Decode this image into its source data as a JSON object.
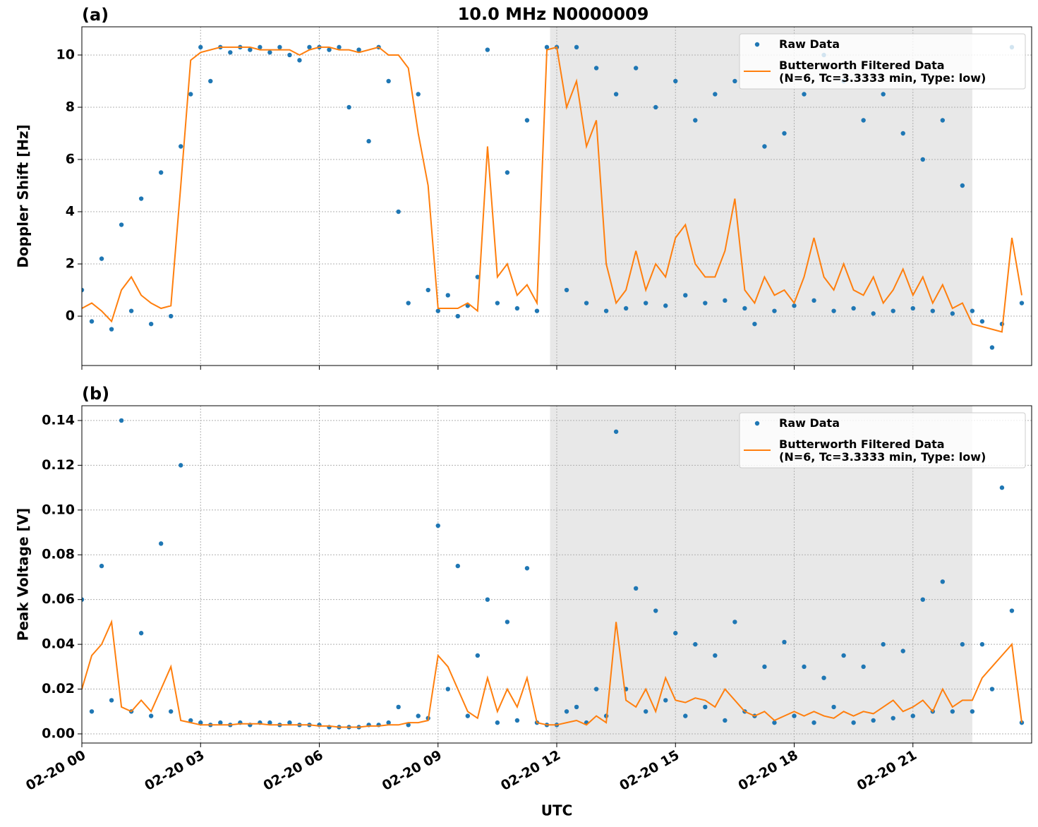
{
  "title": "10.0 MHz N0000009",
  "chart_data": [
    {
      "type": "scatter-line",
      "panel_label": "(a)",
      "ylabel": "Doppler Shift [Hz]",
      "xlim": [
        0,
        24
      ],
      "ylim": [
        -1.89,
        11.08
      ],
      "yticks": [
        0,
        2,
        4,
        6,
        8,
        10
      ],
      "xticks": [
        0,
        3,
        6,
        9,
        12,
        15,
        18,
        21
      ],
      "grid": true,
      "legend": "upper right",
      "shade": [
        11.83,
        22.5
      ],
      "x": [
        0,
        0.25,
        0.5,
        0.75,
        1,
        1.25,
        1.5,
        1.75,
        2,
        2.25,
        2.5,
        2.75,
        3,
        3.25,
        3.5,
        3.75,
        4,
        4.25,
        4.5,
        4.75,
        5,
        5.25,
        5.5,
        5.75,
        6,
        6.25,
        6.5,
        6.75,
        7,
        7.25,
        7.5,
        7.75,
        8,
        8.25,
        8.5,
        8.75,
        9,
        9.25,
        9.5,
        9.75,
        10,
        10.25,
        10.5,
        10.75,
        11,
        11.25,
        11.5,
        11.75,
        12,
        12.25,
        12.5,
        12.75,
        13,
        13.25,
        13.5,
        13.75,
        14,
        14.25,
        14.5,
        14.75,
        15,
        15.25,
        15.5,
        15.75,
        16,
        16.25,
        16.5,
        16.75,
        17,
        17.25,
        17.5,
        17.75,
        18,
        18.25,
        18.5,
        18.75,
        19,
        19.25,
        19.5,
        19.75,
        20,
        20.25,
        20.5,
        20.75,
        21,
        21.25,
        21.5,
        21.75,
        22,
        22.25,
        22.5,
        22.75,
        23,
        23.25,
        23.5,
        23.75
      ],
      "series": [
        {
          "name": "Raw Data",
          "color": "#1f77b4",
          "style": "points",
          "values": [
            1.0,
            -0.2,
            2.2,
            -0.5,
            3.5,
            0.2,
            4.5,
            -0.3,
            5.5,
            0.0,
            6.5,
            8.5,
            10.3,
            9.0,
            10.3,
            10.1,
            10.3,
            10.2,
            10.3,
            10.1,
            10.3,
            10.0,
            9.8,
            10.3,
            10.3,
            10.2,
            10.3,
            8.0,
            10.2,
            6.7,
            10.3,
            9.0,
            4.0,
            0.5,
            8.5,
            1.0,
            0.2,
            0.8,
            0.0,
            0.4,
            1.5,
            10.2,
            0.5,
            5.5,
            0.3,
            7.5,
            0.2,
            10.3,
            10.3,
            1.0,
            10.3,
            0.5,
            9.5,
            0.2,
            8.5,
            0.3,
            9.5,
            0.5,
            8.0,
            0.4,
            9.0,
            0.8,
            7.5,
            0.5,
            8.5,
            0.6,
            9.0,
            0.3,
            -0.3,
            6.5,
            0.2,
            7.0,
            0.4,
            8.5,
            0.6,
            10.0,
            0.2,
            9.0,
            0.3,
            7.5,
            0.1,
            8.5,
            0.2,
            7.0,
            0.3,
            6.0,
            0.2,
            7.5,
            0.1,
            5.0,
            0.2,
            -0.2,
            -1.2,
            -0.3,
            10.3,
            0.5
          ]
        },
        {
          "name": "Butterworth Filtered Data\n(N=6, Tc=3.3333 min, Type: low)",
          "color": "#ff7f0e",
          "style": "line",
          "values": [
            0.3,
            0.5,
            0.2,
            -0.2,
            1.0,
            1.5,
            0.8,
            0.5,
            0.3,
            0.4,
            5.0,
            9.8,
            10.1,
            10.2,
            10.3,
            10.3,
            10.3,
            10.3,
            10.2,
            10.2,
            10.2,
            10.2,
            10.0,
            10.2,
            10.3,
            10.3,
            10.2,
            10.2,
            10.1,
            10.2,
            10.3,
            10.0,
            10.0,
            9.5,
            7.0,
            5.0,
            0.3,
            0.3,
            0.3,
            0.5,
            0.2,
            6.5,
            1.5,
            2.0,
            0.8,
            1.2,
            0.5,
            10.2,
            10.3,
            8.0,
            9.0,
            6.5,
            7.5,
            2.0,
            0.5,
            1.0,
            2.5,
            1.0,
            2.0,
            1.5,
            3.0,
            3.5,
            2.0,
            1.5,
            1.5,
            2.5,
            4.5,
            1.0,
            0.5,
            1.5,
            0.8,
            1.0,
            0.5,
            1.5,
            3.0,
            1.5,
            1.0,
            2.0,
            1.0,
            0.8,
            1.5,
            0.5,
            1.0,
            1.8,
            0.8,
            1.5,
            0.5,
            1.2,
            0.3,
            0.5,
            -0.3,
            -0.4,
            -0.5,
            -0.6,
            3.0,
            0.8
          ]
        }
      ]
    },
    {
      "type": "scatter-line",
      "panel_label": "(b)",
      "ylabel": "Peak Voltage [V]",
      "xlabel": "UTC",
      "xlim": [
        0,
        24
      ],
      "ylim": [
        -0.0041,
        0.1466
      ],
      "yticks": [
        {
          "value": 0,
          "label": "0.00"
        },
        0.02,
        0.04,
        0.06,
        0.08,
        {
          "value": 0.1,
          "label": "0.10"
        },
        0.12,
        0.14
      ],
      "xticks": [
        {
          "value": 0,
          "label": "02-20 00"
        },
        {
          "value": 3,
          "label": "02-20 03"
        },
        {
          "value": 6,
          "label": "02-20 06"
        },
        {
          "value": 9,
          "label": "02-20 09"
        },
        {
          "value": 12,
          "label": "02-20 12"
        },
        {
          "value": 15,
          "label": "02-20 15"
        },
        {
          "value": 18,
          "label": "02-20 18"
        },
        {
          "value": 21,
          "label": "02-20 21"
        }
      ],
      "grid": true,
      "legend": "upper right",
      "shade": [
        11.83,
        22.5
      ],
      "x": [
        0,
        0.25,
        0.5,
        0.75,
        1,
        1.25,
        1.5,
        1.75,
        2,
        2.25,
        2.5,
        2.75,
        3,
        3.25,
        3.5,
        3.75,
        4,
        4.25,
        4.5,
        4.75,
        5,
        5.25,
        5.5,
        5.75,
        6,
        6.25,
        6.5,
        6.75,
        7,
        7.25,
        7.5,
        7.75,
        8,
        8.25,
        8.5,
        8.75,
        9,
        9.25,
        9.5,
        9.75,
        10,
        10.25,
        10.5,
        10.75,
        11,
        11.25,
        11.5,
        11.75,
        12,
        12.25,
        12.5,
        12.75,
        13,
        13.25,
        13.5,
        13.75,
        14,
        14.25,
        14.5,
        14.75,
        15,
        15.25,
        15.5,
        15.75,
        16,
        16.25,
        16.5,
        16.75,
        17,
        17.25,
        17.5,
        17.75,
        18,
        18.25,
        18.5,
        18.75,
        19,
        19.25,
        19.5,
        19.75,
        20,
        20.25,
        20.5,
        20.75,
        21,
        21.25,
        21.5,
        21.75,
        22,
        22.25,
        22.5,
        22.75,
        23,
        23.25,
        23.5,
        23.75
      ],
      "series": [
        {
          "name": "Raw Data",
          "color": "#1f77b4",
          "style": "points",
          "values": [
            0.06,
            0.01,
            0.075,
            0.015,
            0.14,
            0.01,
            0.045,
            0.008,
            0.085,
            0.01,
            0.12,
            0.006,
            0.005,
            0.004,
            0.005,
            0.004,
            0.005,
            0.004,
            0.005,
            0.005,
            0.004,
            0.005,
            0.004,
            0.004,
            0.004,
            0.003,
            0.003,
            0.003,
            0.003,
            0.004,
            0.004,
            0.005,
            0.012,
            0.004,
            0.008,
            0.007,
            0.093,
            0.02,
            0.075,
            0.008,
            0.035,
            0.06,
            0.005,
            0.05,
            0.006,
            0.074,
            0.005,
            0.004,
            0.004,
            0.01,
            0.012,
            0.005,
            0.02,
            0.008,
            0.135,
            0.02,
            0.065,
            0.01,
            0.055,
            0.015,
            0.045,
            0.008,
            0.04,
            0.012,
            0.035,
            0.006,
            0.05,
            0.01,
            0.008,
            0.03,
            0.005,
            0.041,
            0.008,
            0.03,
            0.005,
            0.025,
            0.012,
            0.035,
            0.005,
            0.03,
            0.006,
            0.04,
            0.007,
            0.037,
            0.008,
            0.06,
            0.01,
            0.068,
            0.01,
            0.04,
            0.01,
            0.04,
            0.02,
            0.11,
            0.055,
            0.005
          ]
        },
        {
          "name": "Butterworth Filtered Data\n(N=6, Tc=3.3333 min, Type: low)",
          "color": "#ff7f0e",
          "style": "line",
          "values": [
            0.02,
            0.035,
            0.04,
            0.05,
            0.012,
            0.01,
            0.015,
            0.01,
            0.02,
            0.03,
            0.006,
            0.005,
            0.004,
            0.004,
            0.004,
            0.004,
            0.0045,
            0.0045,
            0.0045,
            0.004,
            0.004,
            0.004,
            0.004,
            0.004,
            0.0035,
            0.0035,
            0.003,
            0.003,
            0.003,
            0.0035,
            0.0035,
            0.004,
            0.004,
            0.005,
            0.005,
            0.006,
            0.035,
            0.03,
            0.02,
            0.01,
            0.007,
            0.025,
            0.01,
            0.02,
            0.012,
            0.025,
            0.005,
            0.004,
            0.004,
            0.005,
            0.006,
            0.004,
            0.008,
            0.005,
            0.05,
            0.015,
            0.012,
            0.02,
            0.01,
            0.025,
            0.015,
            0.014,
            0.016,
            0.015,
            0.012,
            0.02,
            0.015,
            0.01,
            0.008,
            0.01,
            0.006,
            0.008,
            0.01,
            0.008,
            0.01,
            0.008,
            0.007,
            0.01,
            0.008,
            0.01,
            0.009,
            0.012,
            0.015,
            0.01,
            0.012,
            0.015,
            0.01,
            0.02,
            0.012,
            0.015,
            0.015,
            0.025,
            0.03,
            0.035,
            0.04,
            0.005
          ]
        }
      ]
    }
  ]
}
